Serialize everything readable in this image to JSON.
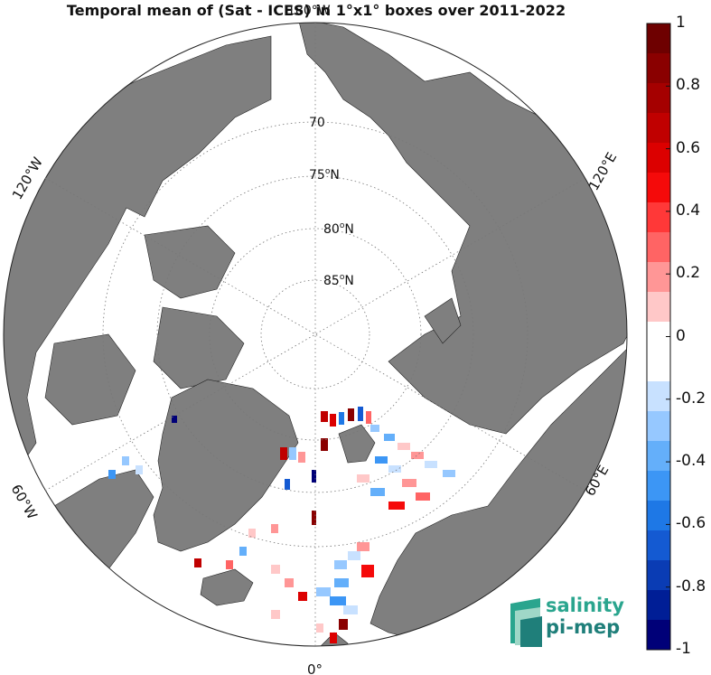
{
  "title": "Temporal mean of (Sat - ICES) in 1°x1° boxes over 2011-2022",
  "map": {
    "projection": "north polar stereographic",
    "lat_labels": [
      "70",
      "75",
      "80",
      "85"
    ],
    "lat_suffix": "N",
    "lon_labels": {
      "top": "180°W",
      "left_upper": "120°W",
      "left_lower": "60°W",
      "bottom": "0°",
      "right_lower": "60°E",
      "right_upper": "120°E"
    },
    "land_color": "#7f7f7f",
    "ocean_color": "#ffffff"
  },
  "colorbar": {
    "min": -1,
    "max": 1,
    "labels": [
      "1",
      "0.8",
      "0.6",
      "0.4",
      "0.2",
      "0",
      "-0.2",
      "-0.4",
      "-0.6",
      "-0.8",
      "-1"
    ],
    "colors_top_to_bottom": [
      "#6e0000",
      "#8a0000",
      "#a50000",
      "#c00000",
      "#dc0000",
      "#f50a0a",
      "#ff3838",
      "#ff6464",
      "#ff9696",
      "#ffc8c8",
      "#ffffff",
      "#ffffff",
      "#c8e1ff",
      "#96c8ff",
      "#64affa",
      "#3c96f5",
      "#1e78e6",
      "#145ad2",
      "#0a3cb4",
      "#001e96",
      "#000078"
    ]
  },
  "logo": {
    "line1": "salinity",
    "line2": "pi-mep"
  }
}
